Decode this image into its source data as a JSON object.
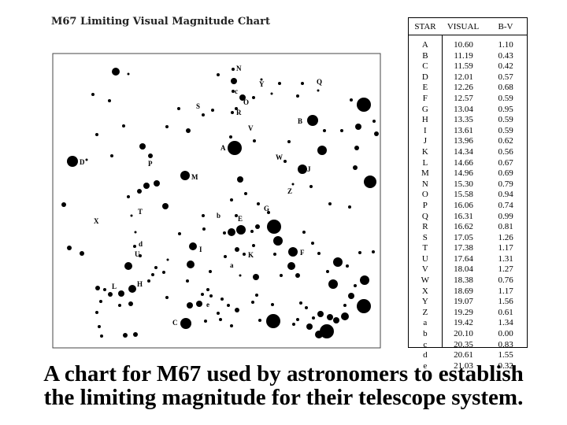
{
  "chart": {
    "title": "M67 Limiting Visual Magnitude Chart"
  },
  "table": {
    "headers": {
      "star": "STAR",
      "visual": "VISUAL",
      "bv": "B-V"
    },
    "rows": [
      {
        "star": "A",
        "visual": "10.60",
        "bv": "1.10"
      },
      {
        "star": "B",
        "visual": "11.19",
        "bv": "0.43"
      },
      {
        "star": "C",
        "visual": "11.59",
        "bv": "0.42"
      },
      {
        "star": "D",
        "visual": "12.01",
        "bv": "0.57"
      },
      {
        "star": "E",
        "visual": "12.26",
        "bv": "0.68"
      },
      {
        "star": "F",
        "visual": "12.57",
        "bv": "0.59"
      },
      {
        "star": "G",
        "visual": "13.04",
        "bv": "0.95"
      },
      {
        "star": "H",
        "visual": "13.35",
        "bv": "0.59"
      },
      {
        "star": "I",
        "visual": "13.61",
        "bv": "0.59"
      },
      {
        "star": "J",
        "visual": "13.96",
        "bv": "0.62"
      },
      {
        "star": "K",
        "visual": "14.34",
        "bv": "0.56"
      },
      {
        "star": "L",
        "visual": "14.66",
        "bv": "0.67"
      },
      {
        "star": "M",
        "visual": "14.96",
        "bv": "0.69"
      },
      {
        "star": "N",
        "visual": "15.30",
        "bv": "0.79"
      },
      {
        "star": "O",
        "visual": "15.58",
        "bv": "0.94"
      },
      {
        "star": "P",
        "visual": "16.06",
        "bv": "0.74"
      },
      {
        "star": "Q",
        "visual": "16.31",
        "bv": "0.99"
      },
      {
        "star": "R",
        "visual": "16.62",
        "bv": "0.81"
      },
      {
        "star": "S",
        "visual": "17.05",
        "bv": "1.26"
      },
      {
        "star": "T",
        "visual": "17.38",
        "bv": "1.17"
      },
      {
        "star": "U",
        "visual": "17.64",
        "bv": "1.31"
      },
      {
        "star": "V",
        "visual": "18.04",
        "bv": "1.27"
      },
      {
        "star": "W",
        "visual": "18.38",
        "bv": "0.76"
      },
      {
        "star": "X",
        "visual": "18.69",
        "bv": "1.17"
      },
      {
        "star": "Y",
        "visual": "19.07",
        "bv": "1.56"
      },
      {
        "star": "Z",
        "visual": "19.29",
        "bv": "0.61"
      },
      {
        "star": "a",
        "visual": "19.42",
        "bv": "1.34"
      },
      {
        "star": "b",
        "visual": "20.10",
        "bv": "0.00"
      },
      {
        "star": "c",
        "visual": "20.35",
        "bv": "0.83"
      },
      {
        "star": "d",
        "visual": "20.61",
        "bv": "1.55"
      },
      {
        "star": "e",
        "visual": "21.03",
        "bv": "0.32"
      }
    ]
  },
  "caption": {
    "line1": "A chart for M67 used by astronomers to establish",
    "line2": "the limiting magnitude for their telescope system."
  }
}
